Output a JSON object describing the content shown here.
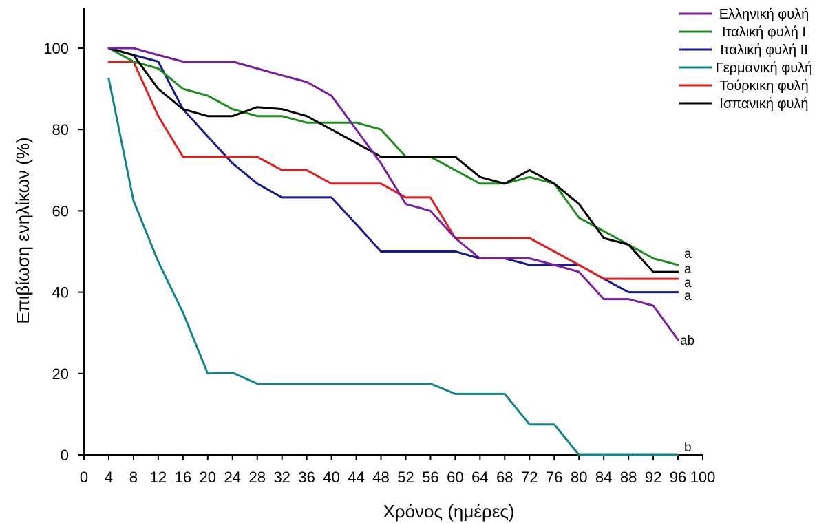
{
  "chart_data": {
    "type": "line",
    "title": "",
    "xlabel": "Χρόνος (ημέρες)",
    "ylabel": "Επιβίωση ενηλίκων (%)",
    "xlim": [
      0,
      100
    ],
    "ylim": [
      0,
      110
    ],
    "xticks": [
      0,
      4,
      8,
      12,
      16,
      20,
      24,
      28,
      32,
      36,
      40,
      44,
      48,
      52,
      56,
      60,
      64,
      68,
      72,
      76,
      80,
      84,
      88,
      92,
      96,
      100
    ],
    "yticks": [
      0,
      20,
      40,
      60,
      80,
      100
    ],
    "grid": false,
    "legend_position": "top-right",
    "series": [
      {
        "name": "Ελληνική φυλή",
        "color": "#7b1fa2",
        "end_label": "ab",
        "points": [
          [
            4,
            100
          ],
          [
            8,
            100
          ],
          [
            12,
            98.3
          ],
          [
            16,
            96.7
          ],
          [
            20,
            96.7
          ],
          [
            24,
            96.7
          ],
          [
            28,
            95
          ],
          [
            32,
            93.3
          ],
          [
            36,
            91.7
          ],
          [
            40,
            88.3
          ],
          [
            44,
            80
          ],
          [
            48,
            71.7
          ],
          [
            52,
            61.7
          ],
          [
            56,
            60
          ],
          [
            60,
            53.3
          ],
          [
            64,
            48.3
          ],
          [
            68,
            48.3
          ],
          [
            72,
            48.3
          ],
          [
            76,
            46.7
          ],
          [
            80,
            45
          ],
          [
            84,
            38.3
          ],
          [
            88,
            38.3
          ],
          [
            92,
            36.7
          ],
          [
            96,
            28.3
          ]
        ]
      },
      {
        "name": "Ιταλική φυλή Ι",
        "color": "#1e8c1e",
        "end_label": "a",
        "points": [
          [
            4,
            100
          ],
          [
            8,
            96.7
          ],
          [
            12,
            95
          ],
          [
            16,
            90
          ],
          [
            20,
            88.3
          ],
          [
            24,
            85
          ],
          [
            28,
            83.3
          ],
          [
            32,
            83.3
          ],
          [
            36,
            81.7
          ],
          [
            40,
            81.7
          ],
          [
            44,
            81.7
          ],
          [
            48,
            80
          ],
          [
            52,
            73.3
          ],
          [
            56,
            73.3
          ],
          [
            60,
            70
          ],
          [
            64,
            66.7
          ],
          [
            68,
            66.7
          ],
          [
            72,
            68.3
          ],
          [
            76,
            66.7
          ],
          [
            80,
            58.3
          ],
          [
            84,
            55
          ],
          [
            88,
            51.7
          ],
          [
            92,
            48.3
          ],
          [
            96,
            46.7
          ]
        ]
      },
      {
        "name": "Ιταλική φυλή ΙΙ",
        "color": "#1a1a8c",
        "end_label": "a",
        "points": [
          [
            4,
            100
          ],
          [
            8,
            98.3
          ],
          [
            12,
            96.7
          ],
          [
            16,
            85
          ],
          [
            20,
            78.3
          ],
          [
            24,
            71.7
          ],
          [
            28,
            66.7
          ],
          [
            32,
            63.3
          ],
          [
            36,
            63.3
          ],
          [
            40,
            63.3
          ],
          [
            44,
            56.7
          ],
          [
            48,
            50
          ],
          [
            52,
            50
          ],
          [
            56,
            50
          ],
          [
            60,
            50
          ],
          [
            64,
            48.3
          ],
          [
            68,
            48.3
          ],
          [
            72,
            46.7
          ],
          [
            76,
            46.7
          ],
          [
            80,
            46.7
          ],
          [
            84,
            43.3
          ],
          [
            88,
            40
          ],
          [
            92,
            40
          ],
          [
            96,
            40
          ]
        ]
      },
      {
        "name": "Γερμανική φυλή",
        "color": "#138585",
        "end_label": "b",
        "points": [
          [
            4,
            92.5
          ],
          [
            8,
            62.5
          ],
          [
            12,
            47.5
          ],
          [
            16,
            35
          ],
          [
            20,
            20
          ],
          [
            24,
            20.2
          ],
          [
            28,
            17.5
          ],
          [
            32,
            17.5
          ],
          [
            36,
            17.5
          ],
          [
            40,
            17.5
          ],
          [
            44,
            17.5
          ],
          [
            48,
            17.5
          ],
          [
            52,
            17.5
          ],
          [
            56,
            17.5
          ],
          [
            60,
            15
          ],
          [
            64,
            15
          ],
          [
            68,
            15
          ],
          [
            72,
            7.5
          ],
          [
            76,
            7.5
          ],
          [
            80,
            0
          ],
          [
            84,
            0
          ],
          [
            88,
            0
          ],
          [
            92,
            0
          ],
          [
            96,
            0
          ]
        ]
      },
      {
        "name": "Τούρκικη φυλή",
        "color": "#e01e1e",
        "end_label": "a",
        "points": [
          [
            4,
            96.7
          ],
          [
            8,
            96.7
          ],
          [
            12,
            83.3
          ],
          [
            16,
            73.3
          ],
          [
            20,
            73.3
          ],
          [
            24,
            73.3
          ],
          [
            28,
            73.3
          ],
          [
            32,
            70
          ],
          [
            36,
            70
          ],
          [
            40,
            66.7
          ],
          [
            44,
            66.7
          ],
          [
            48,
            66.7
          ],
          [
            52,
            63.3
          ],
          [
            56,
            63.3
          ],
          [
            60,
            53.3
          ],
          [
            64,
            53.3
          ],
          [
            68,
            53.3
          ],
          [
            72,
            53.3
          ],
          [
            76,
            50
          ],
          [
            80,
            46.7
          ],
          [
            84,
            43.3
          ],
          [
            88,
            43.3
          ],
          [
            92,
            43.3
          ],
          [
            96,
            43.3
          ]
        ]
      },
      {
        "name": "Ισπανική φυλή",
        "color": "#000000",
        "end_label": "a",
        "points": [
          [
            4,
            100
          ],
          [
            8,
            98.3
          ],
          [
            12,
            90
          ],
          [
            16,
            85
          ],
          [
            20,
            83.3
          ],
          [
            24,
            83.3
          ],
          [
            28,
            85.5
          ],
          [
            32,
            85
          ],
          [
            36,
            83.3
          ],
          [
            40,
            80
          ],
          [
            44,
            76.7
          ],
          [
            48,
            73.3
          ],
          [
            52,
            73.3
          ],
          [
            56,
            73.3
          ],
          [
            60,
            73.3
          ],
          [
            64,
            68.3
          ],
          [
            68,
            66.7
          ],
          [
            72,
            70
          ],
          [
            76,
            66.7
          ],
          [
            80,
            61.7
          ],
          [
            84,
            53.3
          ],
          [
            88,
            51.7
          ],
          [
            92,
            45
          ],
          [
            96,
            45
          ]
        ]
      }
    ]
  }
}
